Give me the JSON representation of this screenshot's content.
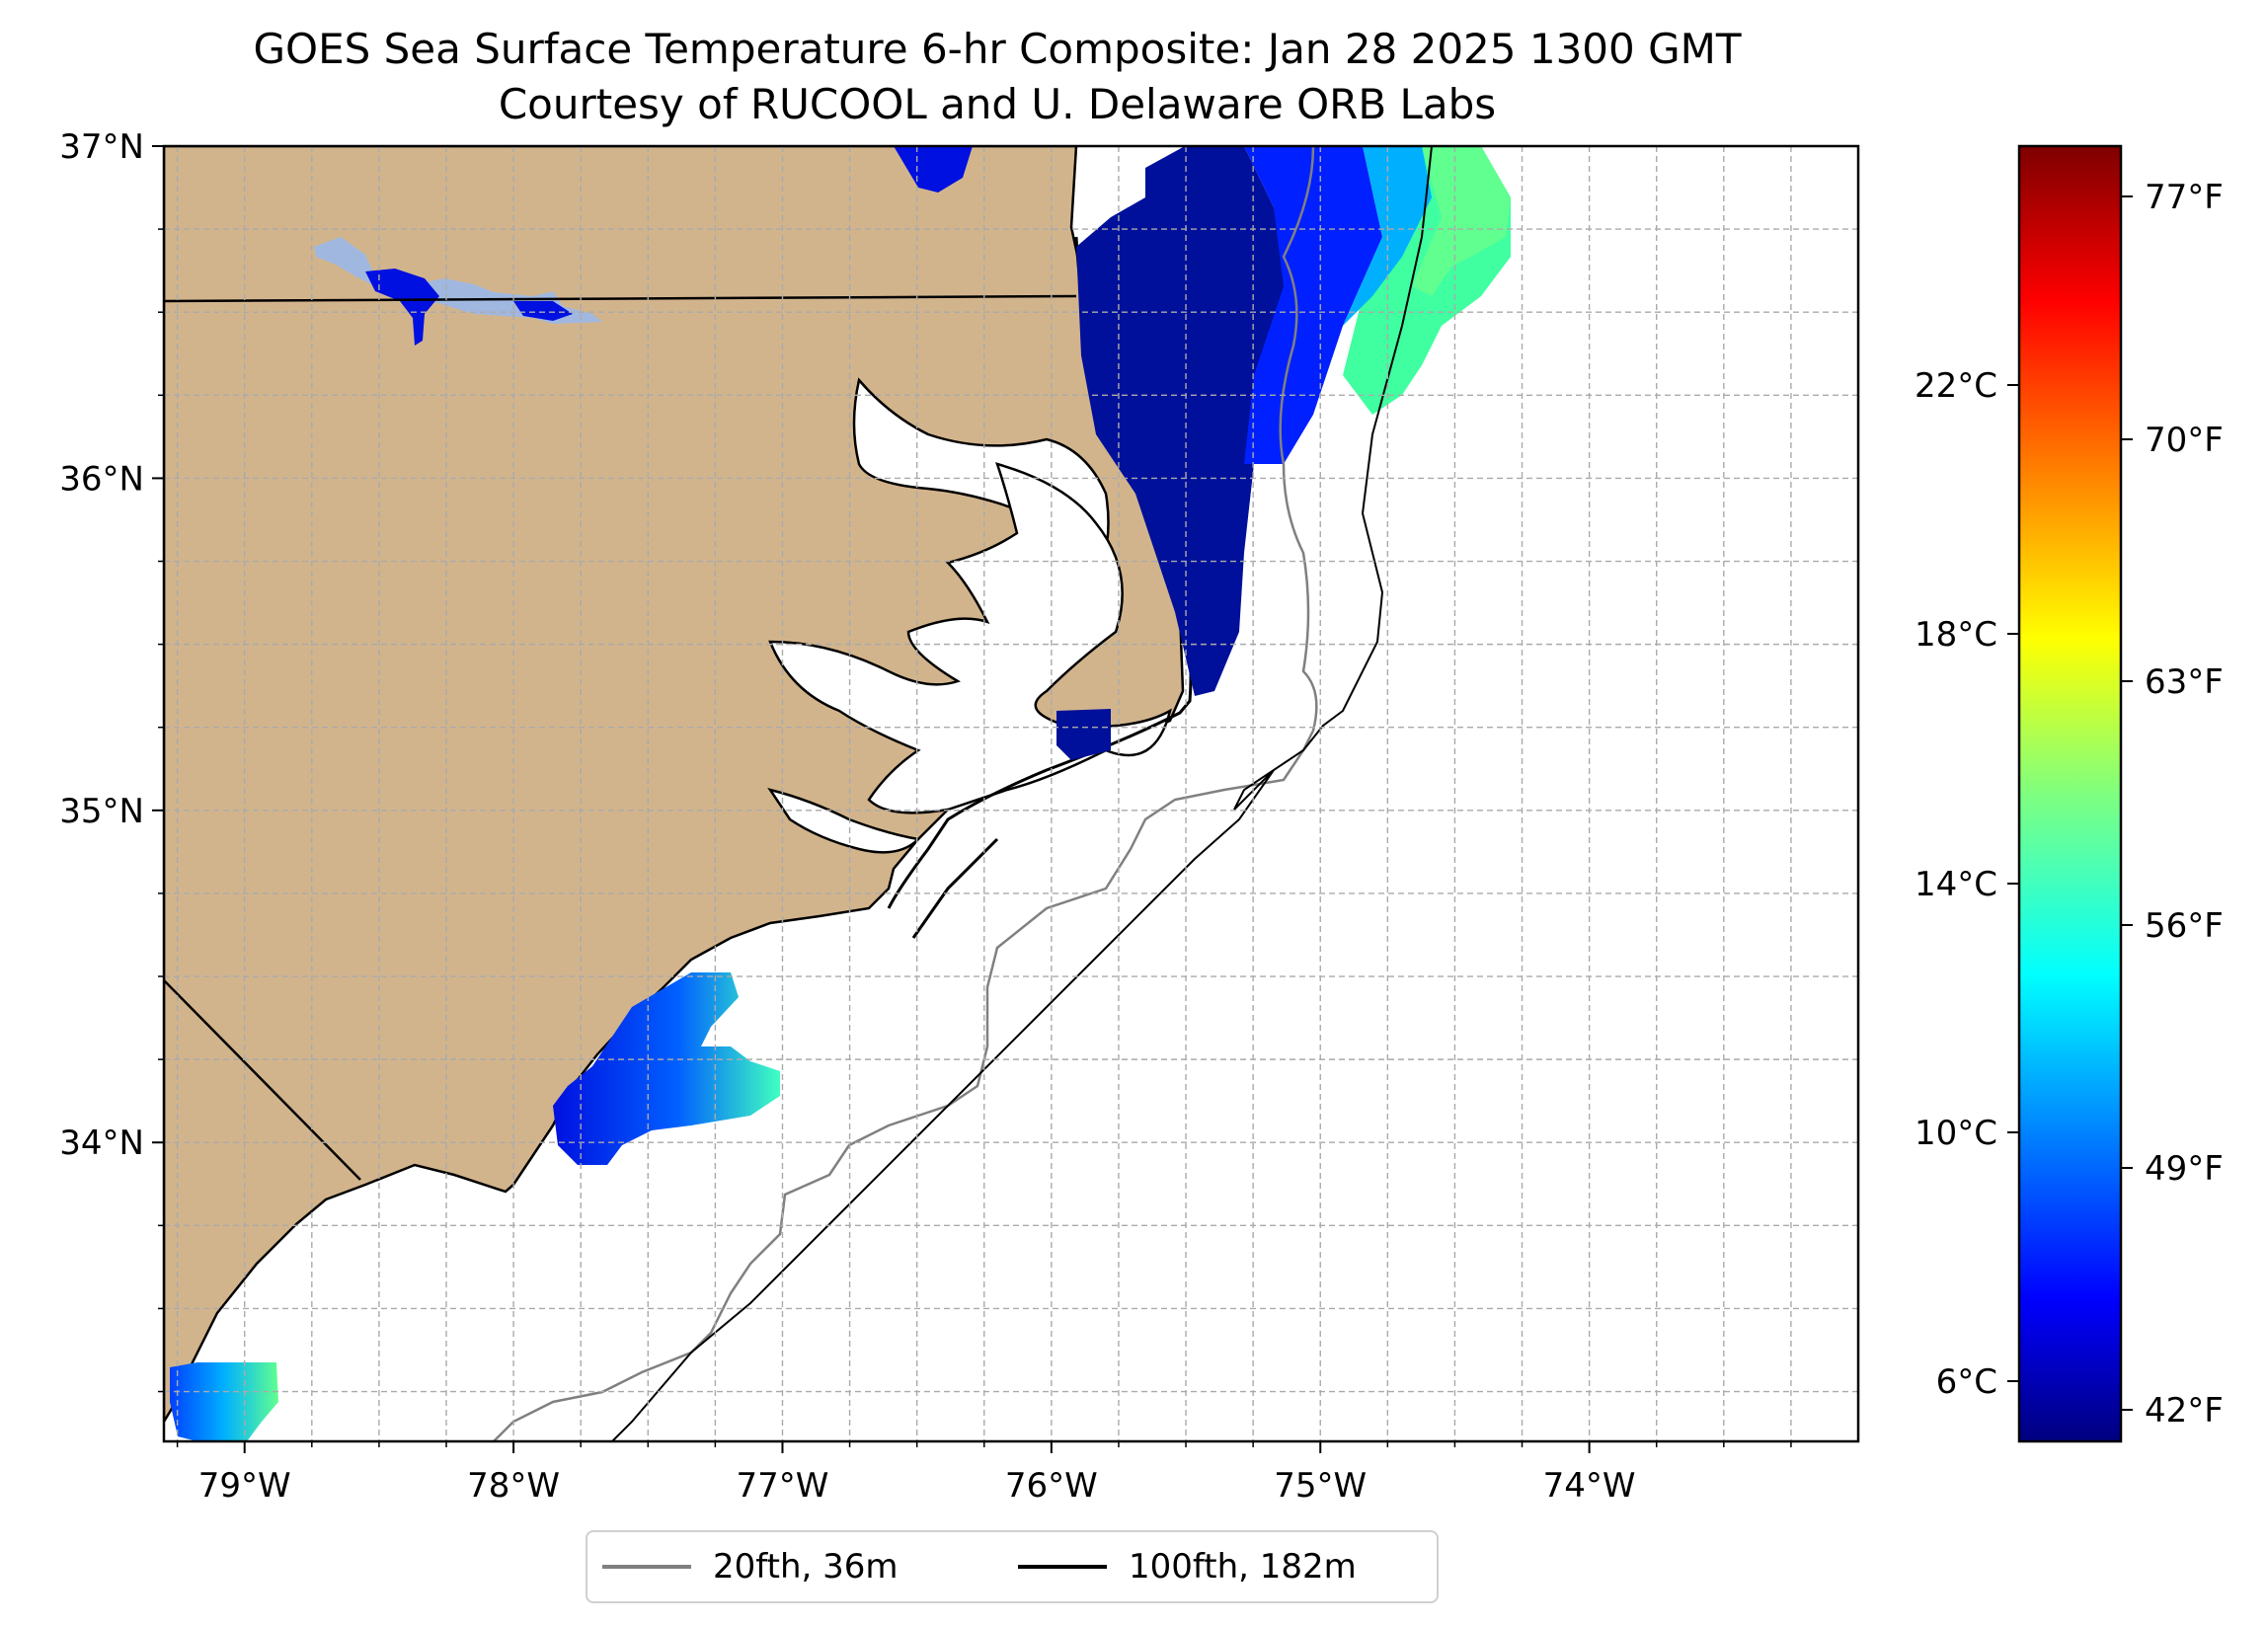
{
  "title": {
    "line1": "GOES Sea Surface Temperature 6-hr Composite: Jan 28 2025 1300 GMT",
    "line2": "Courtesy of RUCOOL and U. Delaware ORB Labs"
  },
  "map": {
    "lon_range": [
      -79.3,
      -73.0
    ],
    "lat_range": [
      33.1,
      37.0
    ],
    "lon_ticks": [
      -79,
      -78,
      -77,
      -76,
      -75,
      -74
    ],
    "lon_tick_labels": [
      "79°W",
      "78°W",
      "77°W",
      "76°W",
      "75°W",
      "74°W"
    ],
    "lat_ticks": [
      34,
      35,
      36,
      37
    ],
    "lat_tick_labels": [
      "34°N",
      "35°N",
      "36°N",
      "37°N"
    ],
    "gridlines": true,
    "land_color": "#d2b48c",
    "ocean_color": "#ffffff",
    "border_color": "#000000"
  },
  "colorbar": {
    "colormap": "jet",
    "celsius_ticks": [
      "6°C",
      "10°C",
      "14°C",
      "18°C",
      "22°C"
    ],
    "fahrenheit_ticks": [
      "42°F",
      "49°F",
      "56°F",
      "63°F",
      "70°F",
      "77°F"
    ],
    "colors": [
      "#00007f",
      "#0000ff",
      "#007fff",
      "#00ffff",
      "#7fff7f",
      "#ffff00",
      "#ff7f00",
      "#ff0000",
      "#7f0000"
    ]
  },
  "legend": {
    "items": [
      {
        "label": "20fth, 36m",
        "color": "#808080"
      },
      {
        "label": "100fth, 182m",
        "color": "#000000"
      }
    ]
  }
}
